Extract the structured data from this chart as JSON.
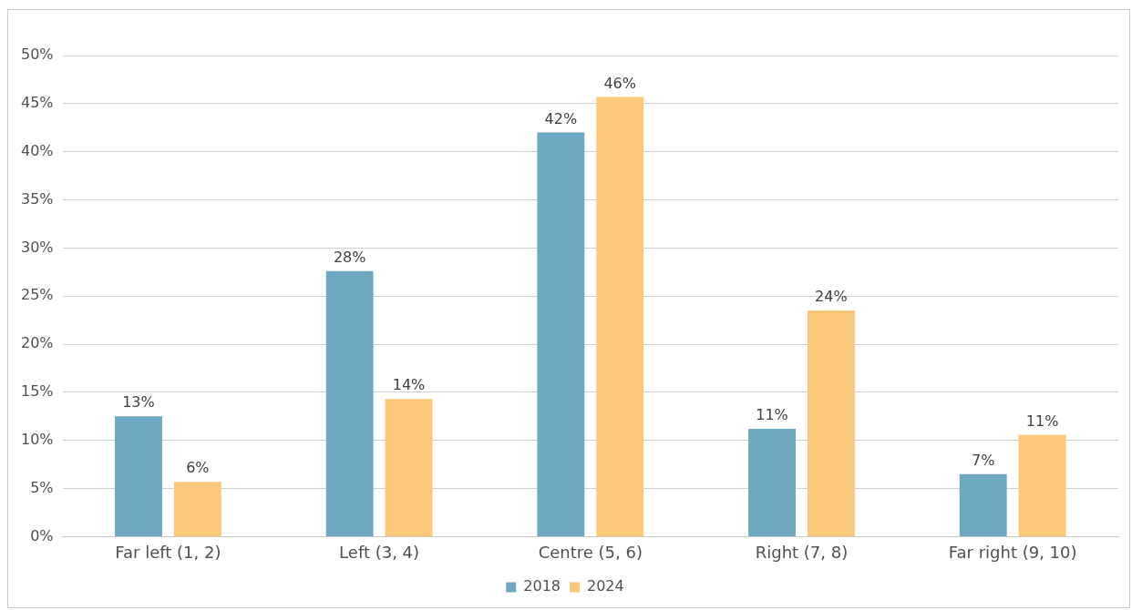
{
  "chart_data": {
    "type": "bar",
    "categories": [
      "Far left (1, 2)",
      "Left (3, 4)",
      "Centre (5, 6)",
      "Right (7, 8)",
      "Far right (9, 10)"
    ],
    "series": [
      {
        "name": "2018",
        "color": "#6fa8c1",
        "values": [
          12.5,
          27.6,
          42.0,
          11.2,
          6.5
        ],
        "value_labels": [
          "13%",
          "28%",
          "42%",
          "11%",
          "7%"
        ]
      },
      {
        "name": "2024",
        "color": "#fac878",
        "values": [
          5.7,
          14.3,
          45.7,
          23.5,
          10.6
        ],
        "value_labels": [
          "6%",
          "14%",
          "46%",
          "24%",
          "11%"
        ]
      }
    ],
    "ylim": [
      0,
      50
    ],
    "yticks": [
      {
        "value": 0,
        "label": "0%"
      },
      {
        "value": 5,
        "label": "5%"
      },
      {
        "value": 10,
        "label": "10%"
      },
      {
        "value": 15,
        "label": "15%"
      },
      {
        "value": 20,
        "label": "20%"
      },
      {
        "value": 25,
        "label": "25%"
      },
      {
        "value": 30,
        "label": "30%"
      },
      {
        "value": 35,
        "label": "35%"
      },
      {
        "value": 40,
        "label": "40%"
      },
      {
        "value": 45,
        "label": "45%"
      },
      {
        "value": 50,
        "label": "50%"
      }
    ],
    "grid": "y",
    "legend": "bottom"
  }
}
